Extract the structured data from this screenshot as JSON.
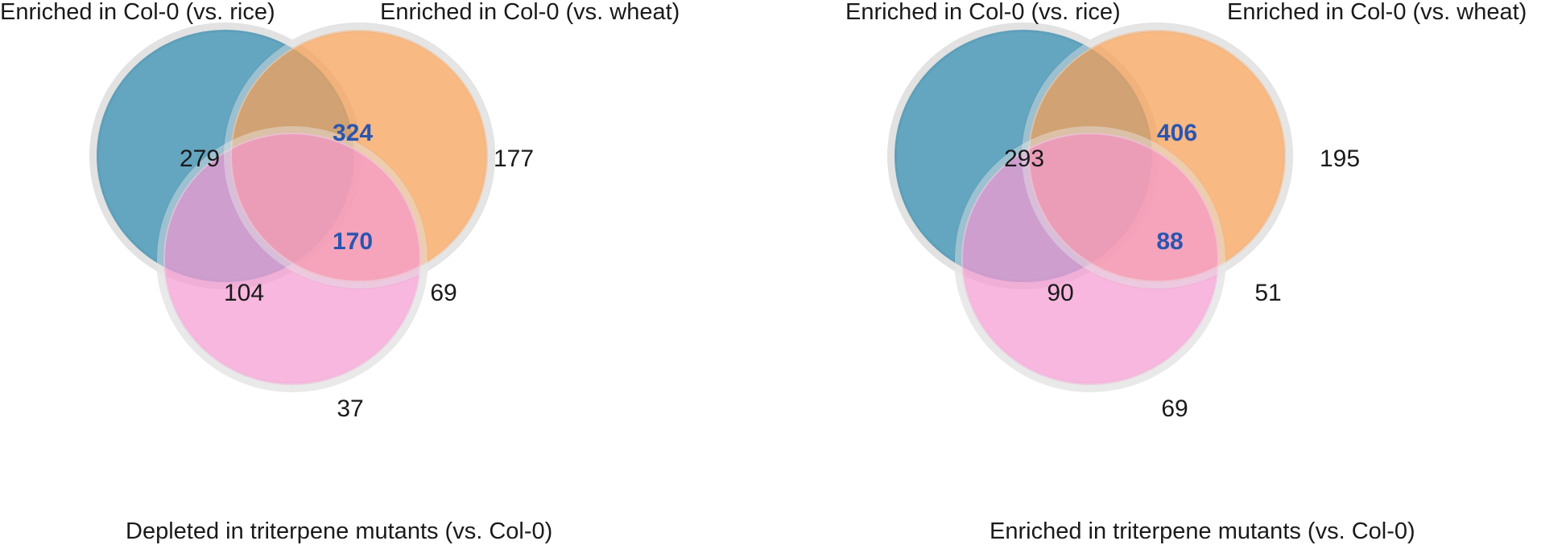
{
  "colors": {
    "rice": "#3d8fb0",
    "wheat": "#f5a25a",
    "mutant": "#f59bd2",
    "ring": "#e2e2e2",
    "highlight_text": "#2a55b0",
    "text": "#1a1a1a"
  },
  "panels": [
    {
      "set_labels": {
        "rice": "Enriched in Col-0 (vs. rice)",
        "wheat": "Enriched in Col-0 (vs. wheat)",
        "mutant": "Depleted in triterpene mutants (vs. Col-0)"
      },
      "counts": {
        "rice_only": "279",
        "rice_wheat": "324",
        "wheat_only": "177",
        "all_three": "170",
        "rice_mutant": "104",
        "wheat_mutant": "69",
        "mutant_only": "37"
      }
    },
    {
      "set_labels": {
        "rice": "Enriched in Col-0 (vs. rice)",
        "wheat": "Enriched in Col-0 (vs. wheat)",
        "mutant": "Enriched in triterpene mutants (vs. Col-0)"
      },
      "counts": {
        "rice_only": "293",
        "rice_wheat": "406",
        "wheat_only": "195",
        "all_three": "88",
        "rice_mutant": "90",
        "wheat_mutant": "51",
        "mutant_only": "69"
      }
    }
  ]
}
